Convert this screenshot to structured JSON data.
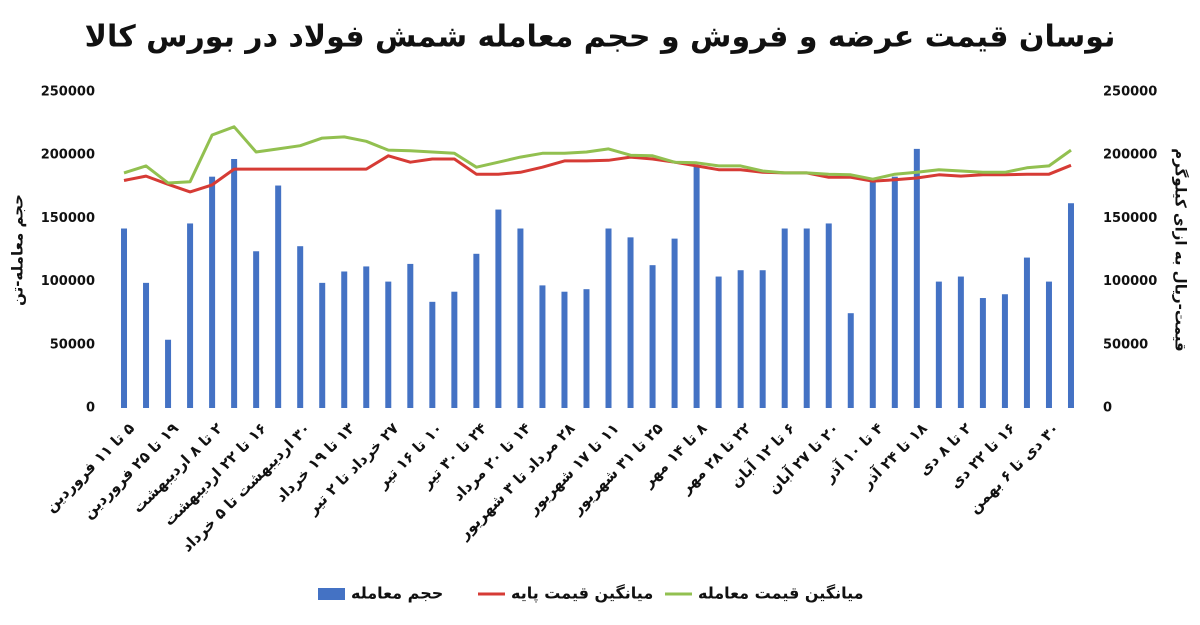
{
  "chart_data": {
    "type": "bar",
    "title": "نوسان قیمت عرضه و فروش و حجم معامله شمش فولاد در بورس کالا",
    "ylabel": "حجم معامله-تن",
    "y2label": "قیمت-ریال به ازای کیلوگرم",
    "categories": [
      "۵ تا ۱۱ فروردین",
      null,
      "۱۹ تا ۲۵ فروردین",
      null,
      "۲ تا ۸ اردیبهشت",
      null,
      "۱۶ تا ۲۲ اردیبهشت",
      null,
      "۳۰ اردیبهشت تا ۵ خرداد",
      null,
      "۱۳ تا ۱۹ خرداد",
      null,
      "۲۷ خرداد تا ۲ تیر",
      null,
      "۱۰ تا ۱۶ تیر",
      null,
      "۲۴ تا ۳۰ تیر",
      null,
      "۱۴ تا ۲۰ مرداد",
      null,
      "۲۸ مرداد تا ۳ شهریور",
      null,
      "۱۱ تا ۱۷ شهریور",
      null,
      "۲۵ تا ۳۱ شهریور",
      null,
      "۸ تا ۱۴ مهر",
      null,
      "۲۲ تا ۲۸ مهر",
      null,
      "۶ تا ۱۲ آبان",
      null,
      "۲۰ تا ۲۷ آبان",
      null,
      "۴ تا ۱۰ آذر",
      null,
      "۱۸ تا ۲۴ آذر",
      null,
      "۲ تا ۸ دی",
      null,
      "۱۶ تا ۲۲ دی",
      null,
      "۳۰ دی تا ۶ بهمن",
      null
    ],
    "series": [
      {
        "name": "حجم معامله",
        "color": "#4472c4",
        "values": [
          142000,
          99000,
          54000,
          146000,
          183000,
          197000,
          124000,
          176000,
          128000,
          99000,
          108000,
          112000,
          100000,
          114000,
          84000,
          92000,
          122000,
          157000,
          142000,
          97000,
          92000,
          94000,
          142000,
          135000,
          113000,
          134000,
          192000,
          104000,
          109000,
          109000,
          142000,
          142000,
          146000,
          75000,
          179000,
          183000,
          205000,
          100000,
          104000,
          87000,
          90000,
          119000,
          100000,
          162000
        ]
      },
      {
        "name": "میانگین قیمت پایه",
        "color": "#d63b35",
        "type": "line",
        "axis": "y2",
        "values": [
          180000,
          183500,
          177000,
          171000,
          176500,
          189000,
          189000,
          189000,
          189000,
          189000,
          189000,
          189000,
          199500,
          194500,
          197000,
          197000,
          185000,
          185000,
          186500,
          190500,
          195500,
          195500,
          196000,
          198500,
          197000,
          194500,
          191500,
          188500,
          188500,
          186500,
          186000,
          186000,
          182500,
          182500,
          179500,
          180500,
          182000,
          184500,
          183500,
          184500,
          184500,
          185000,
          185000,
          192000
        ]
      },
      {
        "name": "میانگین قیمت معامله",
        "color": "#92c050",
        "type": "line",
        "axis": "y2",
        "values": [
          186000,
          191500,
          178000,
          179000,
          216000,
          222500,
          202500,
          205000,
          207500,
          213500,
          214500,
          211000,
          204000,
          203500,
          202500,
          201500,
          190500,
          194500,
          198500,
          201500,
          201500,
          202500,
          205000,
          200000,
          199500,
          194500,
          194000,
          191500,
          191500,
          187500,
          186000,
          186000,
          185000,
          184500,
          181000,
          185000,
          186500,
          188500,
          187500,
          186500,
          186500,
          190000,
          191500,
          204000
        ]
      }
    ],
    "ylim": [
      0,
      250000
    ],
    "yticks": [
      0,
      50000,
      100000,
      150000,
      200000,
      250000
    ],
    "y2lim": [
      0,
      250000
    ],
    "y2ticks": [
      0,
      50000,
      100000,
      150000,
      200000,
      250000
    ],
    "grid": false
  }
}
